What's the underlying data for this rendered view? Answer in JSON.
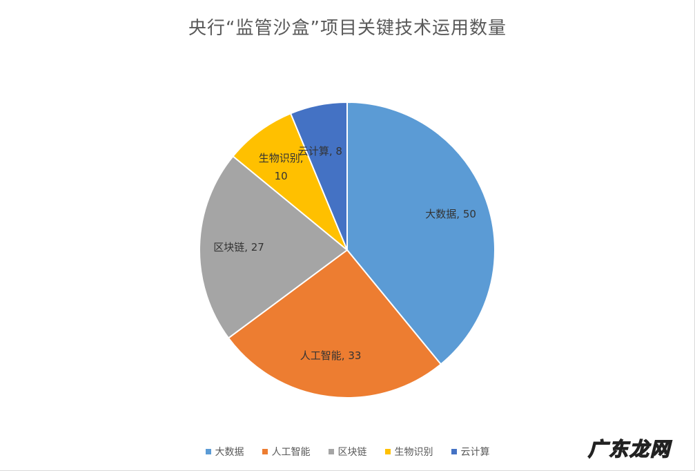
{
  "chart_data": {
    "type": "pie",
    "title": "央行“监管沙盒”项目关键技术运用数量",
    "categories": [
      "大数据",
      "人工智能",
      "区块链",
      "生物识别",
      "云计算"
    ],
    "values": [
      50,
      33,
      27,
      10,
      8
    ],
    "colors": [
      "#5B9BD5",
      "#ED7D31",
      "#A5A5A5",
      "#FFC000",
      "#4472C4"
    ],
    "data_labels": [
      "大数据, 50",
      "人工智能, 33",
      "区块链, 27",
      "生物识别,|10",
      "云计算, 8"
    ],
    "legend_position": "bottom",
    "start_angle_deg": 0,
    "direction": "clockwise"
  },
  "watermark": "广东龙网"
}
